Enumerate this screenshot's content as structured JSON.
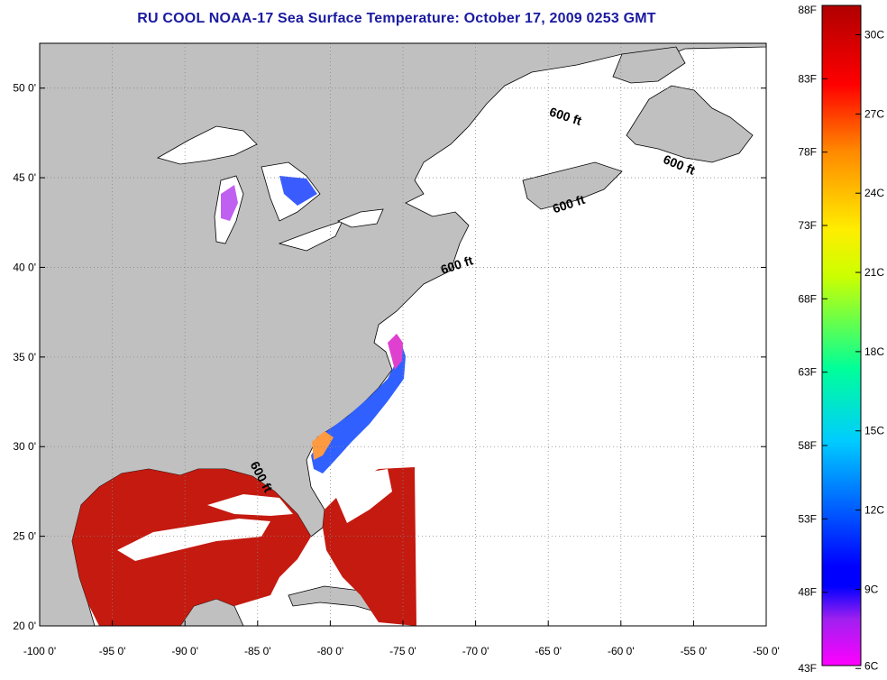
{
  "title": "RU COOL  NOAA-17  Sea Surface Temperature:  October 17, 2009 0253 GMT",
  "map": {
    "lon_range": [
      -100,
      -50
    ],
    "lat_range": [
      20,
      52.5
    ],
    "lon_ticks": [
      {
        "value": -100,
        "label": "-100 0'"
      },
      {
        "value": -95,
        "label": "-95 0'"
      },
      {
        "value": -90,
        "label": "-90 0'"
      },
      {
        "value": -85,
        "label": "-85 0'"
      },
      {
        "value": -80,
        "label": "-80 0'"
      },
      {
        "value": -75,
        "label": "-75 0'"
      },
      {
        "value": -70,
        "label": "-70 0'"
      },
      {
        "value": -65,
        "label": "-65 0'"
      },
      {
        "value": -60,
        "label": "-60 0'"
      },
      {
        "value": -55,
        "label": "-55 0'"
      },
      {
        "value": -50,
        "label": "-50 0'"
      }
    ],
    "lat_ticks": [
      {
        "value": 20,
        "label": "20 0'"
      },
      {
        "value": 25,
        "label": "25 0'"
      },
      {
        "value": 30,
        "label": "30 0'"
      },
      {
        "value": 35,
        "label": "35 0'"
      },
      {
        "value": 40,
        "label": "40 0'"
      },
      {
        "value": 45,
        "label": "45 0'"
      },
      {
        "value": 50,
        "label": "50 0'"
      }
    ],
    "grid": "dotted",
    "depth_labels": [
      {
        "text": "600 ft",
        "lon": -71.2,
        "lat": 39.9,
        "angle": -18
      },
      {
        "text": "600 ft",
        "lon": -63.5,
        "lat": 43.3,
        "angle": -18
      },
      {
        "text": "600 ft",
        "lon": -63.9,
        "lat": 48.2,
        "angle": 18
      },
      {
        "text": "600 ft",
        "lon": -56.1,
        "lat": 45.5,
        "angle": 22
      },
      {
        "text": "600 ft",
        "lon": -85.0,
        "lat": 28.2,
        "angle": 62
      }
    ],
    "colors": {
      "land": "#c0c0c0",
      "cloud": "#ffffff",
      "warm": "#c41a10"
    }
  },
  "colorbar": {
    "fahrenheit": [
      {
        "value": 88,
        "label": "88F"
      },
      {
        "value": 83,
        "label": "83F"
      },
      {
        "value": 78,
        "label": "78F"
      },
      {
        "value": 73,
        "label": "73F"
      },
      {
        "value": 68,
        "label": "68F"
      },
      {
        "value": 63,
        "label": "63F"
      },
      {
        "value": 58,
        "label": "58F"
      },
      {
        "value": 53,
        "label": "53F"
      },
      {
        "value": 48,
        "label": "48F"
      },
      {
        "value": 43,
        "label": "43F"
      }
    ],
    "celsius": [
      {
        "value": 30,
        "label": "30C"
      },
      {
        "value": 27,
        "label": "27C"
      },
      {
        "value": 24,
        "label": "24C"
      },
      {
        "value": 21,
        "label": "21C"
      },
      {
        "value": 18,
        "label": "18C"
      },
      {
        "value": 15,
        "label": "15C"
      },
      {
        "value": 12,
        "label": "12C"
      },
      {
        "value": 9,
        "label": "9C"
      },
      {
        "value": 6,
        "label": "6C"
      }
    ]
  }
}
